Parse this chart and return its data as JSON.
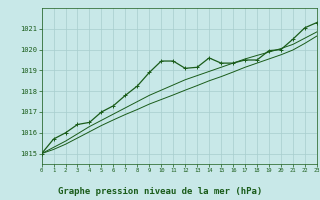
{
  "title": "Graphe pression niveau de la mer (hPa)",
  "x": [
    0,
    1,
    2,
    3,
    4,
    5,
    6,
    7,
    8,
    9,
    10,
    11,
    12,
    13,
    14,
    15,
    16,
    17,
    18,
    19,
    20,
    21,
    22,
    23
  ],
  "y_main": [
    1015.0,
    1015.7,
    1016.0,
    1016.4,
    1016.5,
    1017.0,
    1017.3,
    1017.8,
    1018.25,
    1018.9,
    1019.45,
    1019.45,
    1019.1,
    1019.15,
    1019.6,
    1019.35,
    1019.35,
    1019.5,
    1019.5,
    1019.95,
    1020.0,
    1020.5,
    1021.05,
    1021.3
  ],
  "y_linear1": [
    1015.0,
    1015.3,
    1015.6,
    1015.95,
    1016.3,
    1016.6,
    1016.9,
    1017.2,
    1017.5,
    1017.8,
    1018.05,
    1018.3,
    1018.55,
    1018.75,
    1018.95,
    1019.15,
    1019.35,
    1019.55,
    1019.72,
    1019.88,
    1020.05,
    1020.25,
    1020.55,
    1020.85
  ],
  "y_linear2": [
    1015.0,
    1015.2,
    1015.45,
    1015.75,
    1016.05,
    1016.35,
    1016.62,
    1016.88,
    1017.12,
    1017.38,
    1017.6,
    1017.82,
    1018.05,
    1018.27,
    1018.5,
    1018.7,
    1018.92,
    1019.15,
    1019.35,
    1019.55,
    1019.75,
    1019.98,
    1020.3,
    1020.65
  ],
  "ylim": [
    1014.5,
    1022.0
  ],
  "yticks": [
    1015,
    1016,
    1017,
    1018,
    1019,
    1020,
    1021
  ],
  "xlim": [
    0,
    23
  ],
  "xticks": [
    0,
    1,
    2,
    3,
    4,
    5,
    6,
    7,
    8,
    9,
    10,
    11,
    12,
    13,
    14,
    15,
    16,
    17,
    18,
    19,
    20,
    21,
    22,
    23
  ],
  "line_color": "#1a5c1a",
  "bg_color": "#c8e8e8",
  "grid_color": "#a8cece",
  "text_color": "#1a5c1a",
  "title_color": "#1a5c1a"
}
